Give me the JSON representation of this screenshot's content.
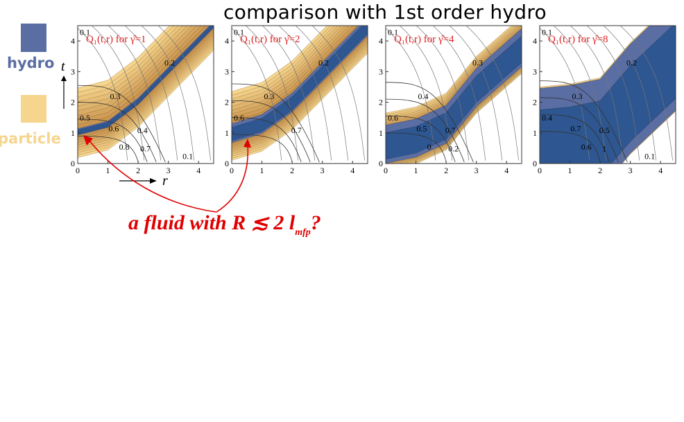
{
  "title": "comparison with 1st order hydro",
  "legend": [
    {
      "label": "hydro",
      "color": "#5a6ea3"
    },
    {
      "label": "particle",
      "color": "#f6d58e"
    }
  ],
  "annotation": {
    "prefix": "a fluid with R ≲ 2 l",
    "subscript": "mfp",
    "suffix": "?",
    "color": "#e00000"
  },
  "colors": {
    "hydro_deep": "#2e5690",
    "hydro": "#5a6ea3",
    "particle_dark": "#c48d47",
    "particle": "#f6d58e",
    "arrow": "#e00000"
  },
  "chart_data": [
    {
      "type": "heatmap",
      "label": "Q₁(t,r) for γ̂=1",
      "gamma_hat": 1,
      "xlabel": "r",
      "ylabel": "t",
      "xlim": [
        0,
        4.5
      ],
      "ylim": [
        0,
        4.5
      ],
      "xticks": [
        "0",
        "1",
        "2",
        "3",
        "4"
      ],
      "yticks": [
        "0",
        "1",
        "2",
        "3",
        "4"
      ],
      "contour_labels": [
        "0.1",
        "0.2",
        "0.3",
        "0.4",
        "0.5",
        "0.6",
        "0.7",
        "0.8",
        "0.1"
      ],
      "band_center": [
        [
          0,
          1.0
        ],
        [
          1,
          1.25
        ],
        [
          2,
          2.0
        ],
        [
          3,
          3.0
        ],
        [
          4.5,
          4.5
        ]
      ],
      "hydro_halfwidth": 0.12,
      "band_halfwidth": 1.35
    },
    {
      "type": "heatmap",
      "label": "Q₁(t,r) for γ̂=2",
      "gamma_hat": 2,
      "xlabel": "",
      "ylabel": "",
      "xlim": [
        0,
        4.5
      ],
      "ylim": [
        0,
        4.5
      ],
      "xticks": [
        "0",
        "1",
        "2",
        "3",
        "4"
      ],
      "yticks": [
        "0",
        "1",
        "2",
        "3",
        "4"
      ],
      "contour_labels": [
        "0.1",
        "0.2",
        "0.3",
        "0.7",
        "0.6"
      ],
      "band_center": [
        [
          0,
          0.9
        ],
        [
          1,
          1.2
        ],
        [
          2,
          1.9
        ],
        [
          3,
          2.9
        ],
        [
          4.5,
          4.4
        ]
      ],
      "hydro_halfwidth": 0.35,
      "band_halfwidth": 1.1
    },
    {
      "type": "heatmap",
      "label": "Q₁(t,r) for γ̂=4",
      "gamma_hat": 4,
      "xlabel": "",
      "ylabel": "",
      "xlim": [
        0,
        4.5
      ],
      "ylim": [
        0,
        4.5
      ],
      "xticks": [
        "0",
        "1",
        "2",
        "3",
        "4"
      ],
      "yticks": [
        "0",
        "1",
        "2",
        "3",
        "4"
      ],
      "contour_labels": [
        "0.1",
        "0.3",
        "0.4",
        "0.7",
        "0.6",
        "0.5",
        "0.2",
        "0"
      ],
      "band_center": [
        [
          0,
          0.45
        ],
        [
          1,
          0.65
        ],
        [
          2,
          1.1
        ],
        [
          3,
          2.3
        ],
        [
          4.5,
          3.6
        ]
      ],
      "hydro_halfwidth": 0.7,
      "band_halfwidth": 0.5
    },
    {
      "type": "heatmap",
      "label": "Q₁(t,r) for γ̂=8",
      "gamma_hat": 8,
      "xlabel": "",
      "ylabel": "",
      "xlim": [
        0,
        4.5
      ],
      "ylim": [
        0,
        4.5
      ],
      "xticks": [
        "0",
        "1",
        "2",
        "3",
        "4"
      ],
      "yticks": [
        "0",
        "1",
        "2",
        "3",
        "4"
      ],
      "contour_labels": [
        "0.1",
        "0.2",
        "0.3",
        "0.5",
        "0.4",
        "0.7",
        "1",
        "0.6",
        "0.1"
      ],
      "band_center": [
        [
          0,
          0.15
        ],
        [
          1,
          0.25
        ],
        [
          2,
          0.45
        ],
        [
          3,
          1.6
        ],
        [
          4.5,
          3.0
        ]
      ],
      "hydro_halfwidth": 2.0,
      "band_halfwidth": 0.35
    }
  ]
}
